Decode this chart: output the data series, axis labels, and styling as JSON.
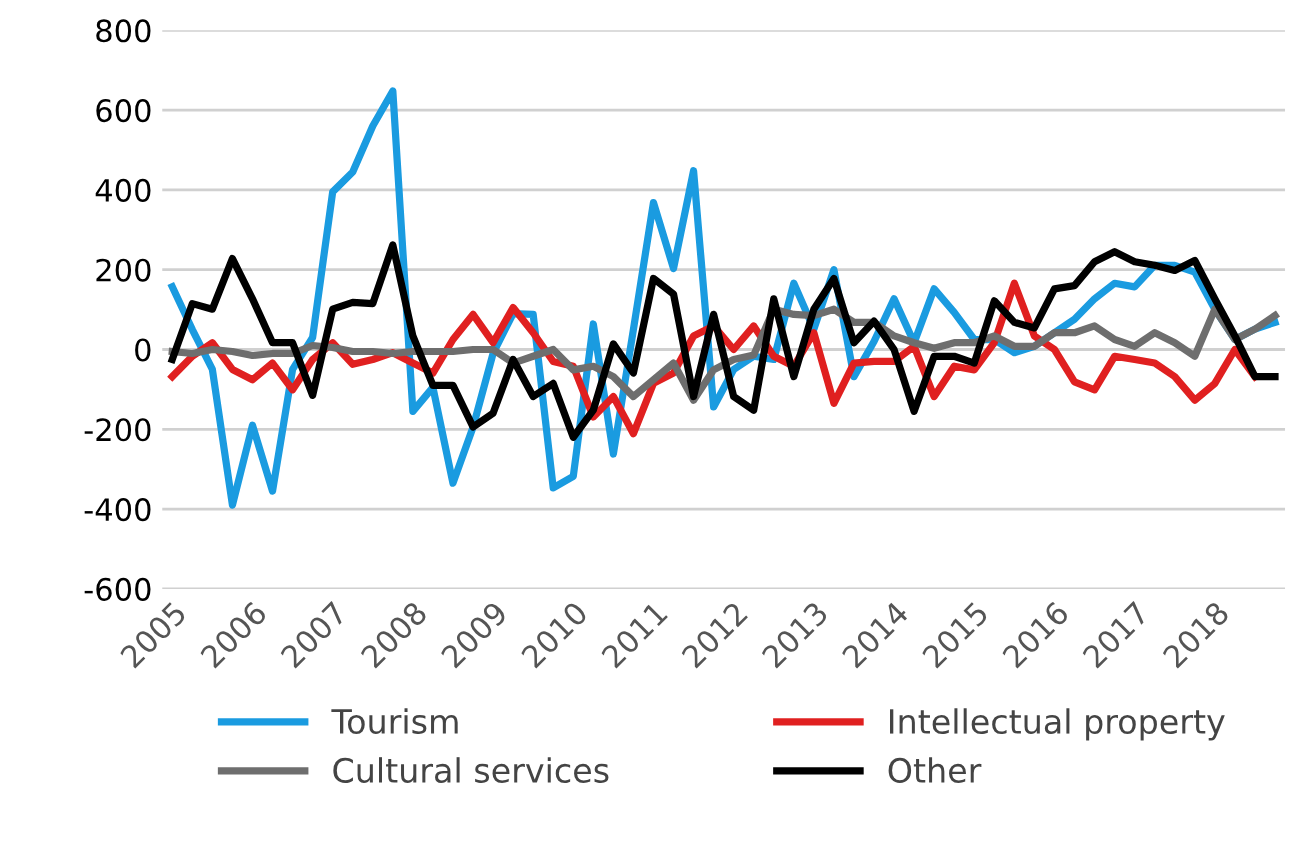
{
  "chart_data": {
    "type": "line",
    "categories": [
      "2005",
      null,
      null,
      null,
      "2006",
      null,
      null,
      null,
      "2007",
      null,
      null,
      null,
      "2008",
      null,
      null,
      null,
      "2009",
      null,
      null,
      null,
      "2010",
      null,
      null,
      null,
      "2011",
      null,
      null,
      null,
      "2012",
      null,
      null,
      null,
      "2013",
      null,
      null,
      null,
      "2014",
      null,
      null,
      null,
      "2015",
      null,
      null,
      null,
      "2016",
      null,
      null,
      null,
      "2017",
      null,
      null,
      null,
      "2018",
      null,
      null,
      null
    ],
    "series": [
      {
        "name": "Tourism",
        "color": "#1a9be0",
        "values": [
          157,
          50,
          -50,
          -390,
          -190,
          -355,
          -50,
          30,
          395,
          445,
          560,
          648,
          -155,
          -95,
          -335,
          -195,
          -10,
          90,
          88,
          -347,
          -318,
          64,
          -262,
          50,
          368,
          203,
          448,
          -144,
          -50,
          -17,
          -25,
          166,
          51,
          200,
          -68,
          20,
          127,
          17,
          152,
          93,
          25,
          25,
          -8,
          8,
          42,
          76,
          127,
          166,
          157,
          211,
          211,
          194,
          101,
          25,
          51,
          68
        ]
      },
      {
        "name": "Intellectual property",
        "color": "#e02020",
        "values": [
          -68,
          -17,
          17,
          -50,
          -76,
          -34,
          -101,
          -25,
          17,
          -37,
          -25,
          -8,
          -34,
          -59,
          25,
          88,
          17,
          105,
          42,
          -30,
          -42,
          -169,
          -118,
          -211,
          -85,
          -59,
          34,
          59,
          0,
          59,
          -17,
          -42,
          42,
          -135,
          -34,
          -30,
          -30,
          8,
          -118,
          -42,
          -51,
          17,
          166,
          34,
          0,
          -81,
          -101,
          -17,
          -25,
          -34,
          -68,
          -127,
          -85,
          0,
          -68,
          null
        ]
      },
      {
        "name": "Cultural services",
        "color": "#6e6e6e",
        "values": [
          -5,
          -10,
          0,
          -5,
          -15,
          -10,
          -10,
          10,
          5,
          -5,
          -5,
          -10,
          -5,
          -5,
          -5,
          0,
          0,
          -34,
          -17,
          0,
          -51,
          -42,
          -68,
          -118,
          -76,
          -34,
          -127,
          -51,
          -25,
          -14,
          101,
          88,
          85,
          101,
          68,
          68,
          34,
          17,
          3,
          17,
          17,
          34,
          8,
          8,
          42,
          42,
          59,
          25,
          8,
          42,
          17,
          -17,
          101,
          25,
          51,
          85
        ]
      },
      {
        "name": "Other",
        "color": "#000000",
        "values": [
          -25,
          115,
          101,
          228,
          127,
          17,
          17,
          -115,
          101,
          118,
          115,
          262,
          34,
          -90,
          -90,
          -194,
          -160,
          -25,
          -118,
          -85,
          -220,
          -152,
          14,
          -59,
          178,
          139,
          -118,
          88,
          -118,
          -152,
          127,
          -68,
          101,
          178,
          17,
          71,
          0,
          -155,
          -17,
          -17,
          -34,
          122,
          68,
          54,
          152,
          160,
          220,
          245,
          220,
          211,
          198,
          223,
          127,
          34,
          -68,
          -68
        ]
      }
    ],
    "ylim": [
      -600,
      800
    ],
    "yticks": [
      -600,
      -400,
      -200,
      0,
      200,
      400,
      600,
      800
    ],
    "grid": "y",
    "legend": "bottom"
  }
}
